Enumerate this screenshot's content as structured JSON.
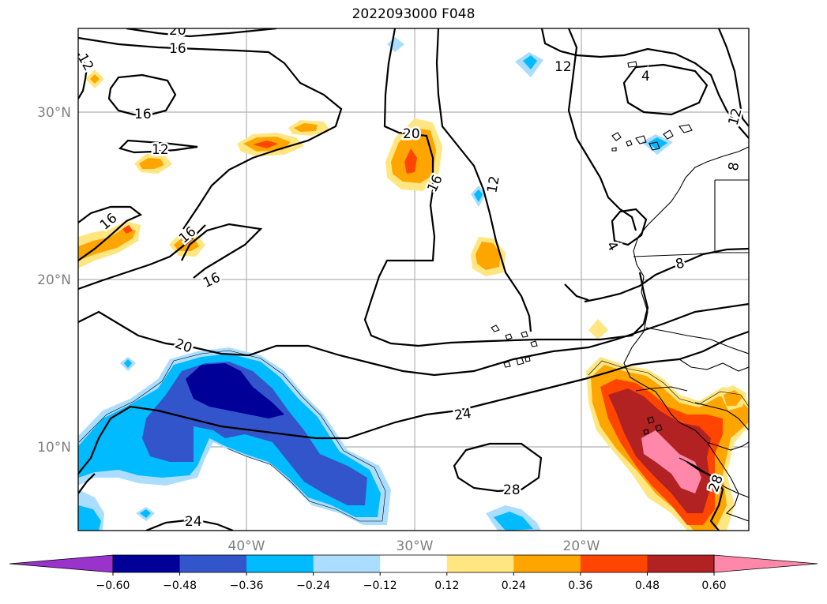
{
  "title": "2022093000 F048",
  "x_ticks": [
    "40°W",
    "30°W",
    "20°W"
  ],
  "y_ticks": [
    "30°N",
    "20°N",
    "10°N"
  ],
  "colorbar": {
    "ticks": [
      "−0.60",
      "−0.48",
      "−0.36",
      "−0.24",
      "−0.12",
      "0.12",
      "0.24",
      "0.36",
      "0.48",
      "0.60"
    ],
    "colors": [
      "#9933cc",
      "#000099",
      "#3355cc",
      "#00bbff",
      "#aaddff",
      "#ffffff",
      "#ffe680",
      "#ffa500",
      "#ff4500",
      "#b22222",
      "#ff88aa"
    ]
  },
  "contour_labels": [
    "20",
    "16",
    "12",
    "16",
    "12",
    "16",
    "16",
    "16",
    "20",
    "16",
    "12",
    "12",
    "4",
    "12",
    "8",
    "4",
    "8",
    "20",
    "24",
    "28",
    "28",
    "24"
  ],
  "colors": {
    "contour": "#000000",
    "grid": "#b0b0b0",
    "tick_label": "#808080"
  }
}
